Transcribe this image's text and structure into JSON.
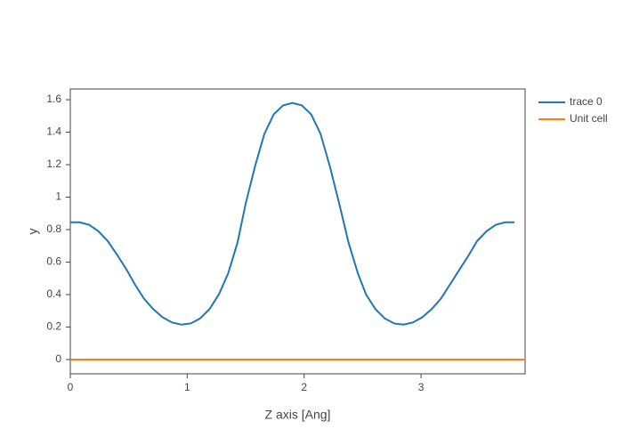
{
  "chart_data": {
    "type": "line",
    "xlabel": "Z axis [Ang]",
    "ylabel": "y",
    "xlim": [
      0,
      3.89
    ],
    "ylim": [
      -0.088,
      1.666
    ],
    "xticks": [
      0,
      1,
      2,
      3
    ],
    "yticks": [
      0,
      0.2,
      0.4,
      0.6,
      0.8,
      1,
      1.2,
      1.4,
      1.6
    ],
    "legend": "outside-right-top",
    "series": [
      {
        "name": "trace 0",
        "color": "#1f77b4",
        "x": [
          0,
          0.08,
          0.16,
          0.24,
          0.32,
          0.4,
          0.48,
          0.55,
          0.63,
          0.71,
          0.79,
          0.87,
          0.95,
          1.03,
          1.11,
          1.19,
          1.27,
          1.35,
          1.43,
          1.5,
          1.58,
          1.66,
          1.74,
          1.82,
          1.9,
          1.98,
          2.06,
          2.14,
          2.22,
          2.3,
          2.38,
          2.46,
          2.53,
          2.61,
          2.69,
          2.77,
          2.85,
          2.93,
          3.01,
          3.09,
          3.17,
          3.25,
          3.33,
          3.41,
          3.48,
          3.56,
          3.64,
          3.72,
          3.8
        ],
        "values": [
          0.845,
          0.845,
          0.83,
          0.79,
          0.73,
          0.645,
          0.555,
          0.465,
          0.375,
          0.31,
          0.26,
          0.228,
          0.215,
          0.222,
          0.253,
          0.31,
          0.4,
          0.53,
          0.72,
          0.96,
          1.19,
          1.39,
          1.51,
          1.565,
          1.58,
          1.565,
          1.51,
          1.39,
          1.19,
          0.96,
          0.72,
          0.53,
          0.4,
          0.31,
          0.253,
          0.222,
          0.215,
          0.228,
          0.26,
          0.31,
          0.375,
          0.465,
          0.555,
          0.645,
          0.73,
          0.79,
          0.83,
          0.845,
          0.845
        ]
      },
      {
        "name": "Unit cell",
        "color": "#ff7f0e",
        "x": [
          0,
          3.89
        ],
        "values": [
          0,
          0
        ]
      }
    ]
  }
}
